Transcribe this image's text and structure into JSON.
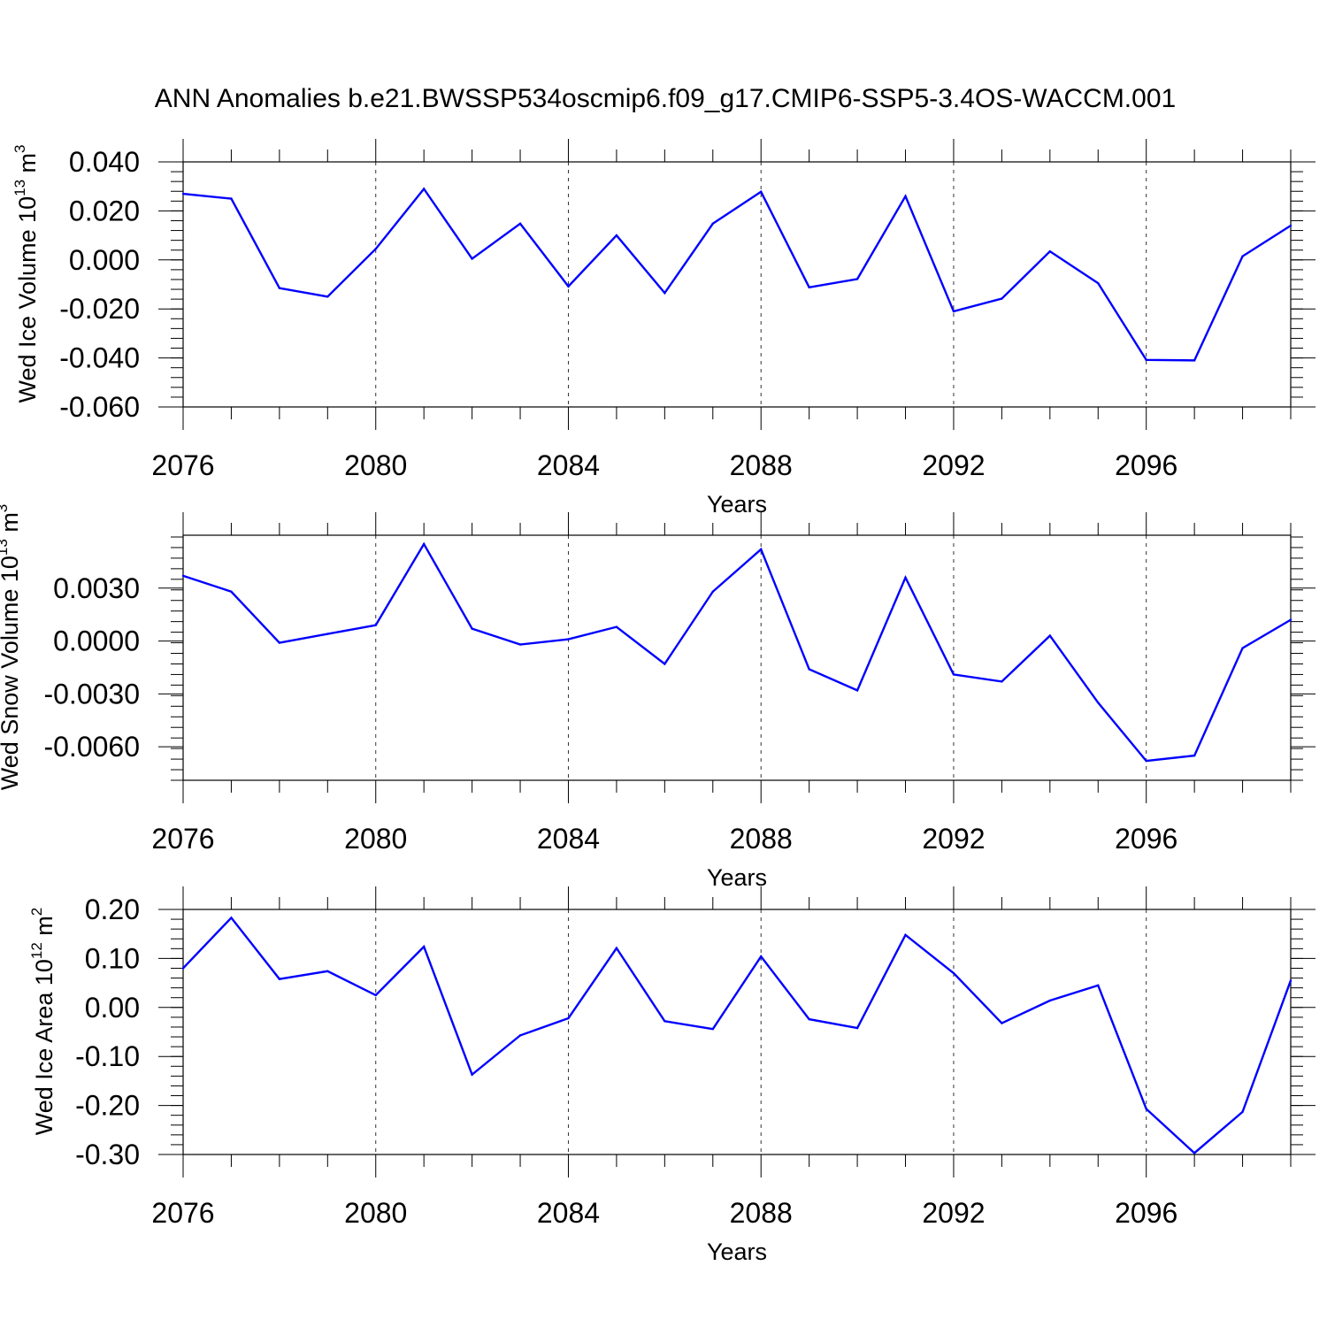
{
  "title": "ANN Anomalies b.e21.BWSSP534oscmip6.f09_g17.CMIP6-SSP5-3.4OS-WACCM.001",
  "colors": {
    "line": "#0000ff",
    "axis": "#000000",
    "grid": "#000000"
  },
  "chart_data": [
    {
      "type": "line",
      "ylabel": {
        "prefix": "Wed Ice Volume 10",
        "exponent": "13",
        "unit": " m",
        "unit_exponent": "3"
      },
      "xlabel": "Years",
      "xlim": [
        2076,
        2099
      ],
      "ylim": [
        -0.06,
        0.04
      ],
      "xticks": [
        2076,
        2080,
        2084,
        2088,
        2092,
        2096
      ],
      "xtick_labels": [
        "2076",
        "2080",
        "2084",
        "2088",
        "2092",
        "2096"
      ],
      "yticks": [
        0.04,
        0.02,
        0.0,
        -0.02,
        -0.04,
        -0.06
      ],
      "ytick_labels": [
        "0.040",
        "0.020",
        "0.000",
        "-0.020",
        "-0.040",
        "-0.060"
      ],
      "grid": "dashed vertical at labeled years",
      "x": [
        2076,
        2077,
        2078,
        2079,
        2080,
        2081,
        2082,
        2083,
        2084,
        2085,
        2086,
        2087,
        2088,
        2089,
        2090,
        2091,
        2092,
        2093,
        2094,
        2095,
        2096,
        2097,
        2098,
        2099
      ],
      "series": [
        {
          "values": [
            0.027,
            0.025,
            -0.0115,
            -0.015,
            0.0045,
            0.029,
            0.0005,
            0.0148,
            -0.0108,
            0.01,
            -0.0135,
            0.0148,
            0.0278,
            -0.0112,
            -0.0078,
            0.026,
            -0.021,
            -0.0158,
            0.0035,
            -0.0095,
            -0.0408,
            -0.041,
            0.0015,
            0.014
          ]
        }
      ]
    },
    {
      "type": "line",
      "ylabel": {
        "prefix": "Wed Snow Volume 10",
        "exponent": "13",
        "unit": " m",
        "unit_exponent": "3"
      },
      "xlabel": "Years",
      "xlim": [
        2076,
        2099
      ],
      "ylim": [
        -0.0079,
        0.006
      ],
      "xticks": [
        2076,
        2080,
        2084,
        2088,
        2092,
        2096
      ],
      "xtick_labels": [
        "2076",
        "2080",
        "2084",
        "2088",
        "2092",
        "2096"
      ],
      "yticks": [
        0.003,
        0.0,
        -0.003,
        -0.006
      ],
      "ytick_labels": [
        "0.0030",
        "0.0000",
        "-0.0030",
        "-0.0060"
      ],
      "grid": "dashed vertical at labeled years",
      "x": [
        2076,
        2077,
        2078,
        2079,
        2080,
        2081,
        2082,
        2083,
        2084,
        2085,
        2086,
        2087,
        2088,
        2089,
        2090,
        2091,
        2092,
        2093,
        2094,
        2095,
        2096,
        2097,
        2098,
        2099
      ],
      "series": [
        {
          "values": [
            0.0037,
            0.0028,
            -0.0001,
            0.0004,
            0.0009,
            0.0055,
            0.0007,
            -0.0002,
            0.0001,
            0.0008,
            -0.0013,
            0.0028,
            0.0052,
            -0.0016,
            -0.0028,
            0.0036,
            -0.0019,
            -0.0023,
            0.0003,
            -0.0035,
            -0.0068,
            -0.0065,
            -0.0004,
            0.0012
          ]
        }
      ]
    },
    {
      "type": "line",
      "ylabel": {
        "prefix": "Wed Ice Area 10",
        "exponent": "12",
        "unit": " m",
        "unit_exponent": "2"
      },
      "xlabel": "Years",
      "xlim": [
        2076,
        2099
      ],
      "ylim": [
        -0.3,
        0.2
      ],
      "xticks": [
        2076,
        2080,
        2084,
        2088,
        2092,
        2096
      ],
      "xtick_labels": [
        "2076",
        "2080",
        "2084",
        "2088",
        "2092",
        "2096"
      ],
      "yticks": [
        0.2,
        0.1,
        0.0,
        -0.1,
        -0.2,
        -0.3
      ],
      "ytick_labels": [
        "0.20",
        "0.10",
        "0.00",
        "-0.10",
        "-0.20",
        "-0.30"
      ],
      "grid": "dashed vertical at labeled years",
      "x": [
        2076,
        2077,
        2078,
        2079,
        2080,
        2081,
        2082,
        2083,
        2084,
        2085,
        2086,
        2087,
        2088,
        2089,
        2090,
        2091,
        2092,
        2093,
        2094,
        2095,
        2096,
        2097,
        2098,
        2099
      ],
      "series": [
        {
          "values": [
            0.08,
            0.183,
            0.058,
            0.074,
            0.025,
            0.124,
            -0.137,
            -0.057,
            -0.022,
            0.121,
            -0.028,
            -0.044,
            0.104,
            -0.024,
            -0.042,
            0.148,
            0.07,
            -0.032,
            0.014,
            0.045,
            -0.207,
            -0.297,
            -0.213,
            0.055
          ]
        }
      ]
    }
  ]
}
